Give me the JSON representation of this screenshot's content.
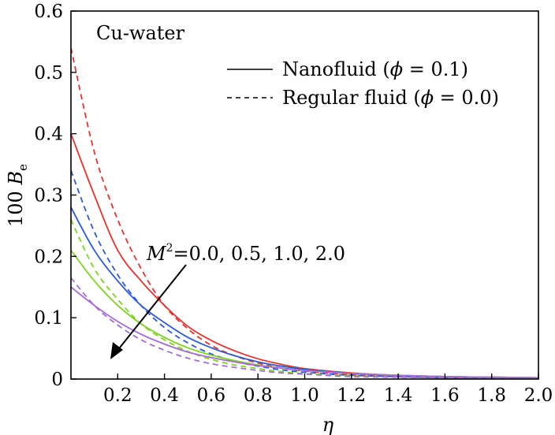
{
  "chart_data": {
    "type": "line",
    "annotation_title": "Cu-water",
    "xlabel": "η",
    "ylabel_prefix": "100 ",
    "ylabel_symbol": "B",
    "ylabel_subscript": "e",
    "xlim": [
      0,
      2.0
    ],
    "ylim": [
      0,
      0.6
    ],
    "x_ticks": [
      0.2,
      0.4,
      0.6,
      0.8,
      1.0,
      1.2,
      1.4,
      1.6,
      1.8,
      2.0
    ],
    "x_tick_labels": [
      "0.2",
      "0.4",
      "0.6",
      "0.8",
      "1.0",
      "1.2",
      "1.4",
      "1.6",
      "1.8",
      "2.0"
    ],
    "y_ticks": [
      0,
      0.1,
      0.2,
      0.3,
      0.4,
      0.5,
      0.6
    ],
    "y_tick_labels": [
      "0",
      "0.1",
      "0.2",
      "0.3",
      "0.4",
      "0.5",
      "0.6"
    ],
    "legend": [
      {
        "style": "solid",
        "text_prefix": "Nanofluid (",
        "symbol": "ϕ",
        "text_suffix": " = 0.1)"
      },
      {
        "style": "dashed",
        "text_prefix": "Regular fluid (",
        "symbol": "ϕ",
        "text_suffix": " = 0.0)"
      }
    ],
    "arrow_annotation": {
      "symbol": "M",
      "superscript": "2",
      "text": "=0.0, 0.5, 1.0, 2.0"
    },
    "colors": [
      "#e8322c",
      "#2a5bd7",
      "#7ed321",
      "#a66bd8"
    ],
    "x": [
      0,
      0.1,
      0.2,
      0.3,
      0.4,
      0.5,
      0.6,
      0.7,
      0.8,
      0.9,
      1.0,
      1.2,
      1.4,
      1.6,
      1.8,
      2.0
    ],
    "series": [
      {
        "color": "#e8322c",
        "style": "solid",
        "values": [
          0.4,
          0.3,
          0.21,
          0.16,
          0.12,
          0.086,
          0.063,
          0.046,
          0.033,
          0.024,
          0.017,
          0.01,
          0.006,
          0.004,
          0.003,
          0.002
        ]
      },
      {
        "color": "#e8322c",
        "style": "dashed",
        "values": [
          0.54,
          0.37,
          0.26,
          0.18,
          0.12,
          0.082,
          0.055,
          0.038,
          0.026,
          0.018,
          0.013,
          0.007,
          0.004,
          0.003,
          0.002,
          0.001
        ]
      },
      {
        "color": "#2a5bd7",
        "style": "solid",
        "values": [
          0.28,
          0.21,
          0.16,
          0.12,
          0.092,
          0.068,
          0.051,
          0.038,
          0.028,
          0.021,
          0.016,
          0.009,
          0.006,
          0.004,
          0.003,
          0.002
        ]
      },
      {
        "color": "#2a5bd7",
        "style": "dashed",
        "values": [
          0.34,
          0.24,
          0.17,
          0.12,
          0.084,
          0.059,
          0.041,
          0.029,
          0.021,
          0.015,
          0.011,
          0.006,
          0.004,
          0.002,
          0.002,
          0.001
        ]
      },
      {
        "color": "#7ed321",
        "style": "solid",
        "values": [
          0.21,
          0.16,
          0.12,
          0.09,
          0.068,
          0.051,
          0.039,
          0.03,
          0.023,
          0.018,
          0.014,
          0.009,
          0.006,
          0.004,
          0.003,
          0.002
        ]
      },
      {
        "color": "#7ed321",
        "style": "dashed",
        "values": [
          0.26,
          0.18,
          0.13,
          0.09,
          0.064,
          0.045,
          0.032,
          0.023,
          0.017,
          0.012,
          0.009,
          0.005,
          0.003,
          0.002,
          0.001,
          0.001
        ]
      },
      {
        "color": "#a66bd8",
        "style": "solid",
        "values": [
          0.15,
          0.12,
          0.094,
          0.073,
          0.057,
          0.044,
          0.035,
          0.028,
          0.022,
          0.018,
          0.014,
          0.009,
          0.006,
          0.004,
          0.003,
          0.002
        ]
      },
      {
        "color": "#a66bd8",
        "style": "dashed",
        "values": [
          0.165,
          0.12,
          0.088,
          0.064,
          0.047,
          0.034,
          0.025,
          0.019,
          0.014,
          0.01,
          0.008,
          0.004,
          0.003,
          0.002,
          0.001,
          0.001
        ]
      }
    ]
  }
}
